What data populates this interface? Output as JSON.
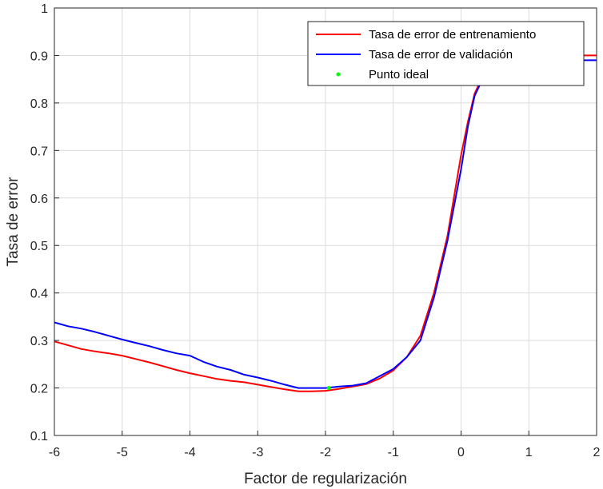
{
  "chart_data": {
    "type": "line",
    "xlabel": "Factor de regularización",
    "ylabel": "Tasa de error",
    "xlim": [
      -6,
      2
    ],
    "ylim": [
      0.1,
      1
    ],
    "xticks": [
      -6,
      -5,
      -4,
      -3,
      -2,
      -1,
      0,
      1,
      2
    ],
    "yticks": [
      0.1,
      0.2,
      0.3,
      0.4,
      0.5,
      0.6,
      0.7,
      0.8,
      0.9,
      1
    ],
    "grid": true,
    "legend": {
      "placement": "top-right"
    },
    "series": [
      {
        "name": "Tasa de error de entrenamiento",
        "color": "#ff0000",
        "x": [
          -6,
          -5.8,
          -5.6,
          -5.4,
          -5.2,
          -5.0,
          -4.8,
          -4.6,
          -4.4,
          -4.2,
          -4.0,
          -3.8,
          -3.6,
          -3.4,
          -3.2,
          -3.0,
          -2.8,
          -2.6,
          -2.4,
          -2.2,
          -2.0,
          -1.8,
          -1.6,
          -1.4,
          -1.2,
          -1.0,
          -0.8,
          -0.6,
          -0.4,
          -0.2,
          0.0,
          0.1,
          0.2,
          0.3,
          0.4,
          0.5,
          1.0,
          1.5,
          2.0
        ],
        "y": [
          0.298,
          0.29,
          0.282,
          0.277,
          0.273,
          0.268,
          0.261,
          0.254,
          0.246,
          0.238,
          0.231,
          0.225,
          0.219,
          0.215,
          0.212,
          0.207,
          0.202,
          0.197,
          0.193,
          0.193,
          0.194,
          0.198,
          0.203,
          0.208,
          0.22,
          0.237,
          0.265,
          0.31,
          0.4,
          0.52,
          0.69,
          0.76,
          0.82,
          0.85,
          0.87,
          0.885,
          0.895,
          0.9,
          0.9
        ]
      },
      {
        "name": "Tasa de error de validación",
        "color": "#0000ff",
        "x": [
          -6,
          -5.8,
          -5.6,
          -5.4,
          -5.2,
          -5.0,
          -4.8,
          -4.6,
          -4.4,
          -4.2,
          -4.0,
          -3.8,
          -3.6,
          -3.4,
          -3.2,
          -3.0,
          -2.8,
          -2.6,
          -2.4,
          -2.2,
          -2.0,
          -1.8,
          -1.6,
          -1.4,
          -1.2,
          -1.0,
          -0.8,
          -0.6,
          -0.4,
          -0.2,
          0.0,
          0.1,
          0.2,
          0.3,
          0.4,
          0.5,
          1.0,
          1.5,
          2.0
        ],
        "y": [
          0.338,
          0.33,
          0.325,
          0.318,
          0.31,
          0.302,
          0.295,
          0.288,
          0.28,
          0.273,
          0.268,
          0.255,
          0.245,
          0.238,
          0.228,
          0.222,
          0.215,
          0.207,
          0.2,
          0.2,
          0.2,
          0.203,
          0.205,
          0.21,
          0.225,
          0.24,
          0.265,
          0.3,
          0.39,
          0.51,
          0.66,
          0.75,
          0.815,
          0.845,
          0.865,
          0.875,
          0.885,
          0.89,
          0.89
        ]
      },
      {
        "name": "Punto ideal",
        "color": "#00ff00",
        "marker": "point",
        "x": [
          -1.95
        ],
        "y": [
          0.2
        ]
      }
    ]
  }
}
